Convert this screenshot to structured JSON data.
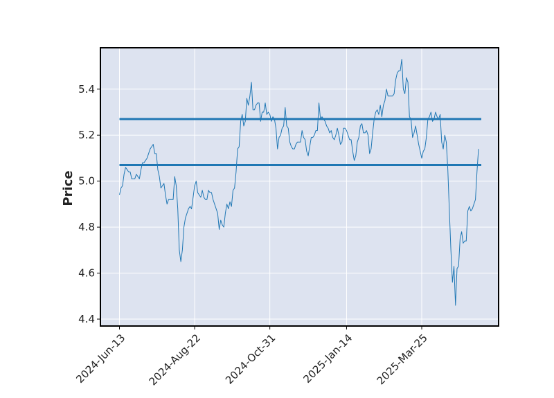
{
  "chart_data": {
    "type": "line",
    "title": "",
    "xlabel": "",
    "ylabel": "Price",
    "ylim": [
      4.37,
      5.58
    ],
    "yticks": [
      "4.4",
      "4.6",
      "4.8",
      "5.0",
      "5.2",
      "5.4"
    ],
    "xticks": [
      "2024-Jun-13",
      "2024-Aug-22",
      "2024-Oct-31",
      "2025-Jan-14",
      "2025-Mar-25"
    ],
    "grid": true,
    "colors": {
      "line": "#1f77b4",
      "background": "#dde3f0",
      "grid": "#ffffff",
      "frame": "#000000"
    },
    "hlines": [
      5.27,
      5.07
    ],
    "series": [
      {
        "x_start": "2024-Jun-13",
        "values": [
          4.94,
          4.97,
          4.98,
          5.03,
          5.06,
          5.05,
          5.04,
          5.04,
          5.01,
          5.01,
          5.01,
          5.03,
          5.02,
          5.01,
          5.05,
          5.08,
          5.08,
          5.09,
          5.1,
          5.12,
          5.14,
          5.15,
          5.16,
          5.12,
          5.12,
          5.05,
          5.02,
          4.97,
          4.98,
          4.99,
          4.94,
          4.9,
          4.92,
          4.92,
          4.92,
          4.92,
          5.02,
          4.98,
          4.88,
          4.7,
          4.65,
          4.7,
          4.8,
          4.84,
          4.86,
          4.88,
          4.89,
          4.88,
          4.93,
          4.98,
          5.0,
          4.95,
          4.94,
          4.93,
          4.96,
          4.93,
          4.92,
          4.92,
          4.96,
          4.95,
          4.95,
          4.92,
          4.9,
          4.88,
          4.86,
          4.79,
          4.83,
          4.81,
          4.8,
          4.86,
          4.9,
          4.88,
          4.91,
          4.89,
          4.96,
          4.97,
          5.04,
          5.14,
          5.15,
          5.26,
          5.29,
          5.24,
          5.26,
          5.36,
          5.33,
          5.37,
          5.43,
          5.31,
          5.31,
          5.33,
          5.34,
          5.34,
          5.26,
          5.3,
          5.3,
          5.34,
          5.29,
          5.3,
          5.29,
          5.26,
          5.28,
          5.27,
          5.23,
          5.14,
          5.19,
          5.2,
          5.23,
          5.24,
          5.32,
          5.24,
          5.23,
          5.17,
          5.15,
          5.14,
          5.14,
          5.16,
          5.17,
          5.17,
          5.17,
          5.22,
          5.19,
          5.18,
          5.13,
          5.11,
          5.15,
          5.19,
          5.19,
          5.2,
          5.22,
          5.22,
          5.34,
          5.27,
          5.28,
          5.27,
          5.26,
          5.24,
          5.23,
          5.21,
          5.22,
          5.19,
          5.18,
          5.2,
          5.23,
          5.2,
          5.16,
          5.17,
          5.23,
          5.23,
          5.22,
          5.2,
          5.18,
          5.18,
          5.13,
          5.09,
          5.11,
          5.17,
          5.19,
          5.24,
          5.25,
          5.21,
          5.21,
          5.22,
          5.2,
          5.12,
          5.14,
          5.21,
          5.27,
          5.3,
          5.31,
          5.29,
          5.33,
          5.28,
          5.33,
          5.35,
          5.4,
          5.37,
          5.37,
          5.37,
          5.37,
          5.38,
          5.44,
          5.47,
          5.48,
          5.48,
          5.53,
          5.4,
          5.38,
          5.45,
          5.43,
          5.28,
          5.27,
          5.19,
          5.21,
          5.24,
          5.2,
          5.16,
          5.13,
          5.1,
          5.13,
          5.14,
          5.19,
          5.27,
          5.28,
          5.3,
          5.26,
          5.27,
          5.3,
          5.28,
          5.27,
          5.29,
          5.17,
          5.14,
          5.2,
          5.17,
          5.05,
          4.87,
          4.7,
          4.56,
          4.63,
          4.46,
          4.62,
          4.63,
          4.75,
          4.78,
          4.73,
          4.74,
          4.74,
          4.87,
          4.89,
          4.87,
          4.88,
          4.9,
          4.92,
          5.04,
          5.14
        ]
      }
    ]
  }
}
